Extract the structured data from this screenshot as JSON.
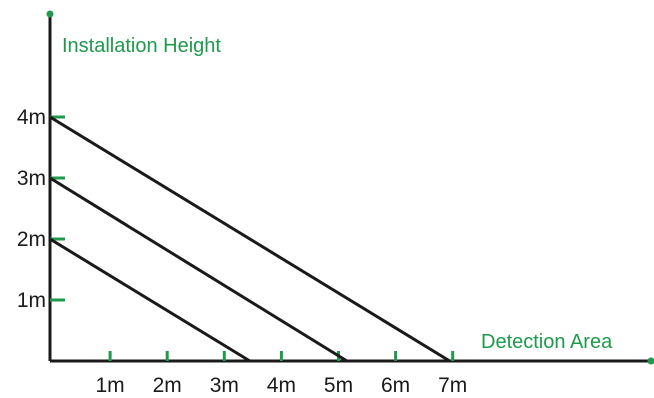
{
  "chart_data": {
    "type": "line",
    "xlabel": "Detection Area",
    "ylabel": "Installation Height",
    "x_ticks": [
      "1m",
      "2m",
      "3m",
      "4m",
      "5m",
      "6m",
      "7m"
    ],
    "y_ticks": [
      "1m",
      "2m",
      "3m",
      "4m"
    ],
    "x_unit": "m",
    "y_unit": "m",
    "xlim": [
      0,
      7
    ],
    "ylim": [
      0,
      4
    ],
    "grid": false,
    "series": [
      {
        "points": [
          [
            0,
            4
          ],
          [
            7,
            0
          ]
        ]
      },
      {
        "points": [
          [
            0,
            3
          ],
          [
            5.2,
            0
          ]
        ]
      },
      {
        "points": [
          [
            0,
            2
          ],
          [
            3.5,
            0
          ]
        ]
      }
    ],
    "colors": {
      "axis": "#1a1a1a",
      "tick": "#1f9a4d",
      "line": "#1a1a1a",
      "label_accent": "#1f9a4d"
    }
  }
}
